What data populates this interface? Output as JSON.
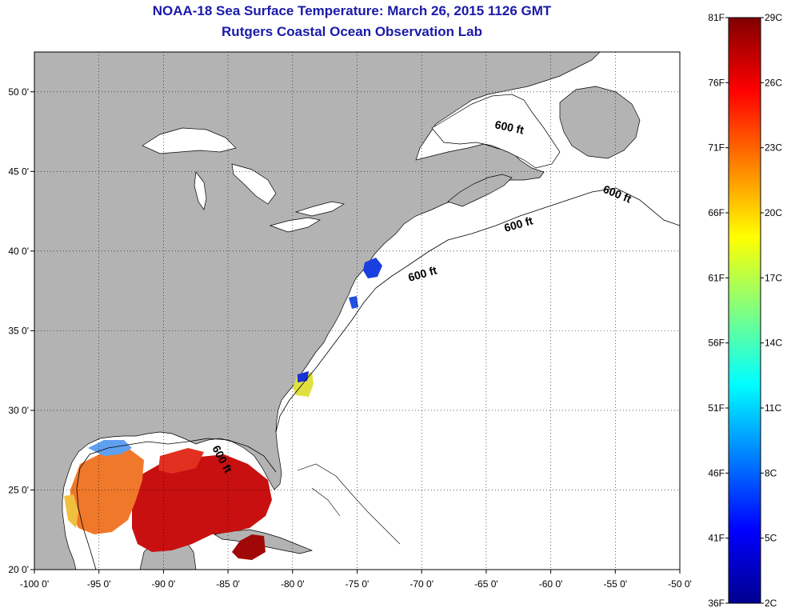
{
  "title": {
    "line1": "NOAA-18 Sea Surface Temperature:  March 26, 2015 1126 GMT",
    "line2": "Rutgers Coastal Ocean Observation Lab"
  },
  "map": {
    "lon_range": [
      -100,
      -50
    ],
    "lat_range": [
      20,
      52.5
    ],
    "lon_ticks": [
      {
        "value": -100,
        "label": "-100 0'"
      },
      {
        "value": -95,
        "label": "-95 0'"
      },
      {
        "value": -90,
        "label": "-90 0'"
      },
      {
        "value": -85,
        "label": "-85 0'"
      },
      {
        "value": -80,
        "label": "-80 0'"
      },
      {
        "value": -75,
        "label": "-75 0'"
      },
      {
        "value": -70,
        "label": "-70 0'"
      },
      {
        "value": -65,
        "label": "-65 0'"
      },
      {
        "value": -60,
        "label": "-60 0'"
      },
      {
        "value": -55,
        "label": "-55 0'"
      },
      {
        "value": -50,
        "label": "-50 0'"
      }
    ],
    "lat_ticks": [
      {
        "value": 20,
        "label": "20 0'"
      },
      {
        "value": 25,
        "label": "25 0'"
      },
      {
        "value": 30,
        "label": "30 0'"
      },
      {
        "value": 35,
        "label": "35 0'"
      },
      {
        "value": 40,
        "label": "40 0'"
      },
      {
        "value": 45,
        "label": "45 0'"
      },
      {
        "value": 50,
        "label": "50 0'"
      }
    ],
    "grid": "dotted",
    "contour_label": "600 ft",
    "land_color": "#b3b3b3",
    "ocean_color": "#ffffff"
  },
  "colorbar": {
    "celsius_labels": [
      "29C",
      "26C",
      "23C",
      "20C",
      "17C",
      "14C",
      "11C",
      "8C",
      "5C",
      "2C"
    ],
    "fahrenheit_labels": [
      "81F",
      "76F",
      "71F",
      "66F",
      "61F",
      "56F",
      "51F",
      "46F",
      "41F",
      "36F"
    ]
  }
}
